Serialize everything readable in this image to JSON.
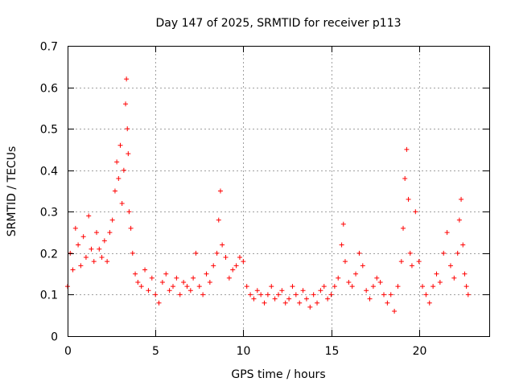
{
  "chart_data": {
    "type": "scatter",
    "title": "Day 147 of 2025, SRMTID for receiver p113",
    "xlabel": "GPS time / hours",
    "ylabel": "SRMTID / TECUs",
    "xlim": [
      0,
      24
    ],
    "ylim": [
      0,
      0.7
    ],
    "xticks": [
      0,
      5,
      10,
      15,
      20
    ],
    "xtick_labels": [
      "0",
      "5",
      "10",
      "15",
      "20"
    ],
    "yticks": [
      0,
      0.1,
      0.2,
      0.3,
      0.4,
      0.5,
      0.6,
      0.7
    ],
    "ytick_labels": [
      "0",
      "0.1",
      "0.2",
      "0.3",
      "0.4",
      "0.5",
      "0.6",
      "0.7"
    ],
    "grid": true,
    "marker": "+",
    "colors": {
      "points": "#ff0000",
      "grid": "#a0a0a0",
      "axes": "#000000"
    },
    "series": [
      {
        "name": "SRMTID",
        "x": [
          0.0,
          0.15,
          0.3,
          0.45,
          0.6,
          0.75,
          0.9,
          1.05,
          1.2,
          1.35,
          1.5,
          1.65,
          1.8,
          1.95,
          2.1,
          2.25,
          2.4,
          2.55,
          2.7,
          2.8,
          2.9,
          3.0,
          3.1,
          3.2,
          3.3,
          3.35,
          3.4,
          3.45,
          3.5,
          3.6,
          3.7,
          3.85,
          4.0,
          4.2,
          4.4,
          4.6,
          4.8,
          5.0,
          5.2,
          5.4,
          5.6,
          5.8,
          6.0,
          6.2,
          6.4,
          6.6,
          6.8,
          7.0,
          7.15,
          7.3,
          7.5,
          7.7,
          7.9,
          8.1,
          8.3,
          8.5,
          8.6,
          8.7,
          8.8,
          9.0,
          9.2,
          9.4,
          9.6,
          9.8,
          10.0,
          10.2,
          10.4,
          10.6,
          10.8,
          11.0,
          11.2,
          11.4,
          11.6,
          11.8,
          12.0,
          12.2,
          12.4,
          12.6,
          12.8,
          13.0,
          13.2,
          13.4,
          13.6,
          13.8,
          14.0,
          14.2,
          14.4,
          14.6,
          14.8,
          15.0,
          15.2,
          15.4,
          15.6,
          15.7,
          15.8,
          16.0,
          16.2,
          16.4,
          16.6,
          16.8,
          17.0,
          17.2,
          17.4,
          17.6,
          17.8,
          18.0,
          18.2,
          18.4,
          18.6,
          18.8,
          19.0,
          19.1,
          19.2,
          19.3,
          19.4,
          19.5,
          19.6,
          19.8,
          20.0,
          20.2,
          20.4,
          20.6,
          20.8,
          21.0,
          21.2,
          21.4,
          21.6,
          21.8,
          22.0,
          22.2,
          22.3,
          22.4,
          22.5,
          22.6,
          22.7,
          22.8
        ],
        "y": [
          0.12,
          0.2,
          0.16,
          0.26,
          0.22,
          0.17,
          0.24,
          0.19,
          0.29,
          0.21,
          0.18,
          0.25,
          0.21,
          0.19,
          0.23,
          0.18,
          0.25,
          0.28,
          0.35,
          0.42,
          0.38,
          0.46,
          0.32,
          0.4,
          0.56,
          0.62,
          0.5,
          0.44,
          0.3,
          0.26,
          0.2,
          0.15,
          0.13,
          0.12,
          0.16,
          0.11,
          0.14,
          0.1,
          0.08,
          0.13,
          0.15,
          0.11,
          0.12,
          0.14,
          0.1,
          0.13,
          0.12,
          0.11,
          0.14,
          0.2,
          0.12,
          0.1,
          0.15,
          0.13,
          0.17,
          0.2,
          0.28,
          0.35,
          0.22,
          0.19,
          0.14,
          0.16,
          0.17,
          0.19,
          0.18,
          0.12,
          0.1,
          0.09,
          0.11,
          0.1,
          0.08,
          0.1,
          0.12,
          0.09,
          0.1,
          0.11,
          0.08,
          0.09,
          0.12,
          0.1,
          0.08,
          0.11,
          0.09,
          0.07,
          0.1,
          0.08,
          0.11,
          0.12,
          0.09,
          0.1,
          0.12,
          0.14,
          0.22,
          0.27,
          0.18,
          0.13,
          0.12,
          0.15,
          0.2,
          0.17,
          0.11,
          0.09,
          0.12,
          0.14,
          0.13,
          0.1,
          0.08,
          0.1,
          0.06,
          0.12,
          0.18,
          0.26,
          0.38,
          0.45,
          0.33,
          0.2,
          0.17,
          0.3,
          0.18,
          0.12,
          0.1,
          0.08,
          0.12,
          0.15,
          0.13,
          0.2,
          0.25,
          0.17,
          0.14,
          0.2,
          0.28,
          0.33,
          0.22,
          0.15,
          0.12,
          0.1
        ]
      }
    ]
  }
}
